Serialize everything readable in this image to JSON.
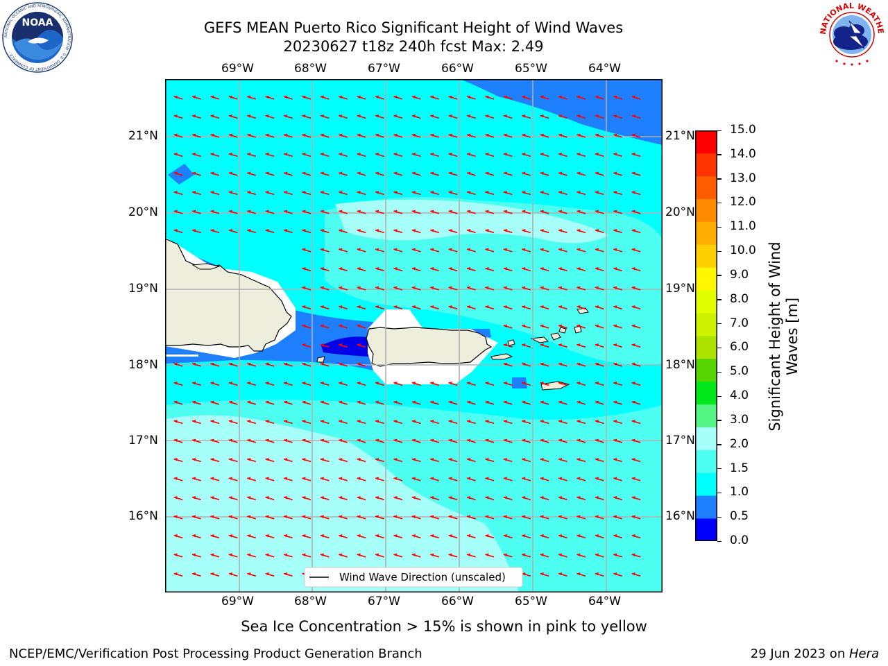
{
  "title": {
    "line1": "GEFS MEAN Puerto Rico Significant Height of Wind Waves",
    "line2": "20230627 t18z 240h fcst   Max: 2.49"
  },
  "logos": {
    "noaa_text": "NOAA",
    "noaa_ring": "NATIONAL OCEANIC AND ATMOSPHERIC ADMINISTRATION · U.S. DEPARTMENT OF COMMERCE ·",
    "nws_ring": "NATIONAL WEATHER SERVICE"
  },
  "map": {
    "lon_labels": [
      "69°W",
      "68°W",
      "67°W",
      "66°W",
      "65°W",
      "64°W"
    ],
    "lat_labels": [
      "21°N",
      "20°N",
      "19°N",
      "18°N",
      "17°N",
      "16°N"
    ],
    "legend_label": "Wind Wave Direction (unscaled)"
  },
  "colorbar": {
    "title_line1": "Significant Height of Wind",
    "title_line2": "Waves [m]",
    "ticks": [
      "15.0",
      "14.0",
      "13.0",
      "12.0",
      "11.0",
      "10.0",
      "9.0",
      "8.0",
      "7.0",
      "6.0",
      "5.0",
      "4.0",
      "3.0",
      "2.0",
      "1.5",
      "1.0",
      "0.5",
      "0.0"
    ],
    "colors": [
      "#0000ff",
      "#1e7fff",
      "#00ffff",
      "#4dfff0",
      "#a6fff8",
      "#55f585",
      "#00e81c",
      "#55d400",
      "#aee200",
      "#cdf200",
      "#e2ff00",
      "#fff600",
      "#ffd000",
      "#ffae00",
      "#ff8c00",
      "#ff5d00",
      "#ff3500",
      "#ff0000"
    ]
  },
  "caption": "Sea Ice Concentration > 15% is shown in pink to yellow",
  "footer": {
    "left": "NCEP/EMC/Verification Post Processing Product Generation Branch",
    "right_date": "29 Jun 2023 on ",
    "right_machine": "Hera"
  }
}
